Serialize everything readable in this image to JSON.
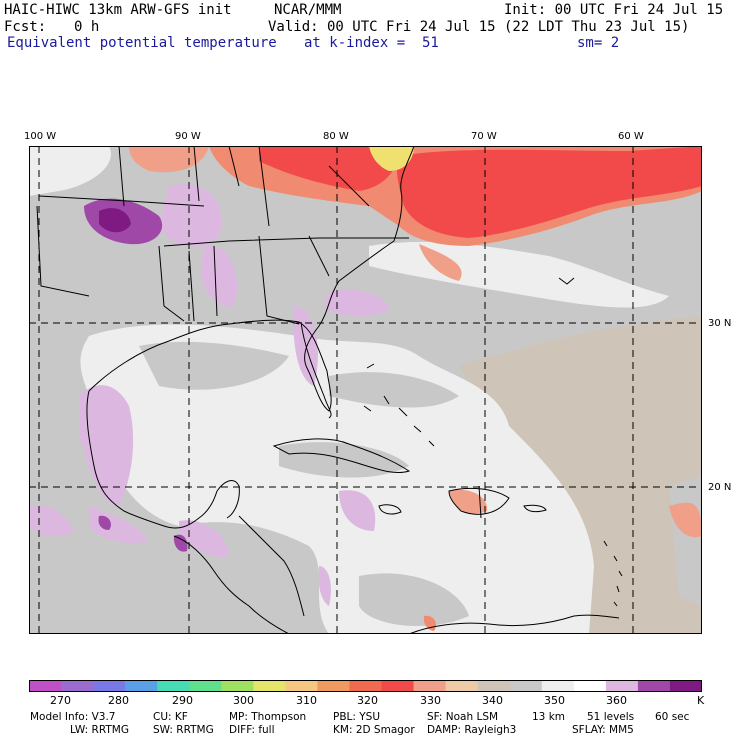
{
  "header": {
    "model_title": "HAIC-HIWC 13km ARW-GFS init",
    "org": "NCAR/MMM",
    "init": "Init: 00 UTC Fri 24 Jul 15",
    "fcst_label": "Fcst:",
    "fcst_value": "0 h",
    "valid": "Valid: 00 UTC Fri 24 Jul 15 (22 LDT Thu 23 Jul 15)",
    "field_name": "Equivalent potential temperature",
    "level": "at k-index =  51",
    "smoothing": "sm= 2"
  },
  "axes": {
    "lon_labels": [
      "100 W",
      "90 W",
      "80 W",
      "70 W",
      "60 W"
    ],
    "lat_labels": [
      "30 N",
      "20 N"
    ]
  },
  "colorbar": {
    "labels": [
      "270",
      "280",
      "290",
      "300",
      "310",
      "320",
      "330",
      "340",
      "350",
      "360"
    ],
    "unit": "K",
    "colors": [
      "#c050c8",
      "#9a6cd0",
      "#7878e6",
      "#5aa0e6",
      "#48dcb4",
      "#5ee08c",
      "#a0e060",
      "#e4e468",
      "#f4c882",
      "#f09a60",
      "#f06a50",
      "#f24a4a",
      "#f0a088",
      "#eecaa8",
      "#cfc4b8",
      "#c8c8c8",
      "#eeeeee",
      "#ffffff",
      "#dcb8e0",
      "#a048a8",
      "#7e1a82"
    ]
  },
  "model_info": {
    "line1": [
      "Model Info: V3.7",
      "CU: KF",
      "MP: Thompson",
      "PBL: YSU",
      "SF: Noah LSM",
      "13 km",
      "51 levels",
      "60 sec"
    ],
    "line2": [
      "LW: RRTMG",
      "SW: RRTMG",
      "DIFF: full",
      "KM: 2D Smagor",
      "DAMP: Rayleigh3",
      "SFLAY: MM5"
    ]
  },
  "map_colors": {
    "background_gray": "#c8c8c8",
    "light": "#eeeeee",
    "tan": "#cfc4b8",
    "lilac": "#dcb8e0",
    "purple": "#a048a8",
    "dark_purple": "#7e1a82",
    "red": "#f24a4a",
    "salmon": "#f08a70",
    "peach": "#f0a088",
    "yellow": "#f0e070"
  }
}
